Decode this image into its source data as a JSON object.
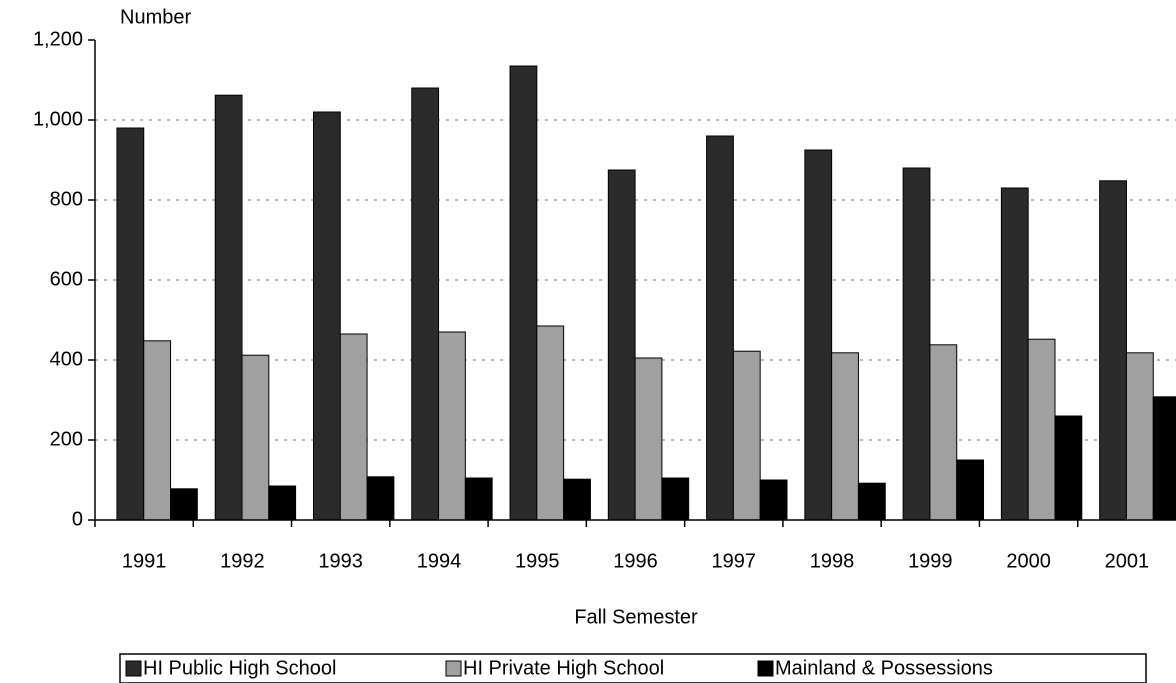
{
  "chart_data": {
    "type": "bar",
    "y_label": "Number",
    "x_label": "Fall Semester",
    "categories": [
      "1991",
      "1992",
      "1993",
      "1994",
      "1995",
      "1996",
      "1997",
      "1998",
      "1999",
      "2000",
      "2001"
    ],
    "series": [
      {
        "name": "HI Public High School",
        "color": "#2b2b2b",
        "values": [
          980,
          1062,
          1020,
          1080,
          1135,
          875,
          960,
          925,
          880,
          830,
          848
        ]
      },
      {
        "name": "HI Private High School",
        "color": "#a0a0a0",
        "values": [
          448,
          412,
          465,
          470,
          485,
          405,
          422,
          418,
          438,
          452,
          418
        ]
      },
      {
        "name": "Mainland & Possessions",
        "color": "#000000",
        "values": [
          78,
          85,
          108,
          105,
          102,
          105,
          100,
          92,
          150,
          260,
          308
        ]
      }
    ],
    "ylim": [
      0,
      1200
    ],
    "yticks": [
      0,
      200,
      400,
      600,
      800,
      {
        "value": 1000,
        "label": "1,000"
      },
      {
        "value": 1200,
        "label": "1,200"
      }
    ],
    "grid": true,
    "legend": "bottom"
  }
}
